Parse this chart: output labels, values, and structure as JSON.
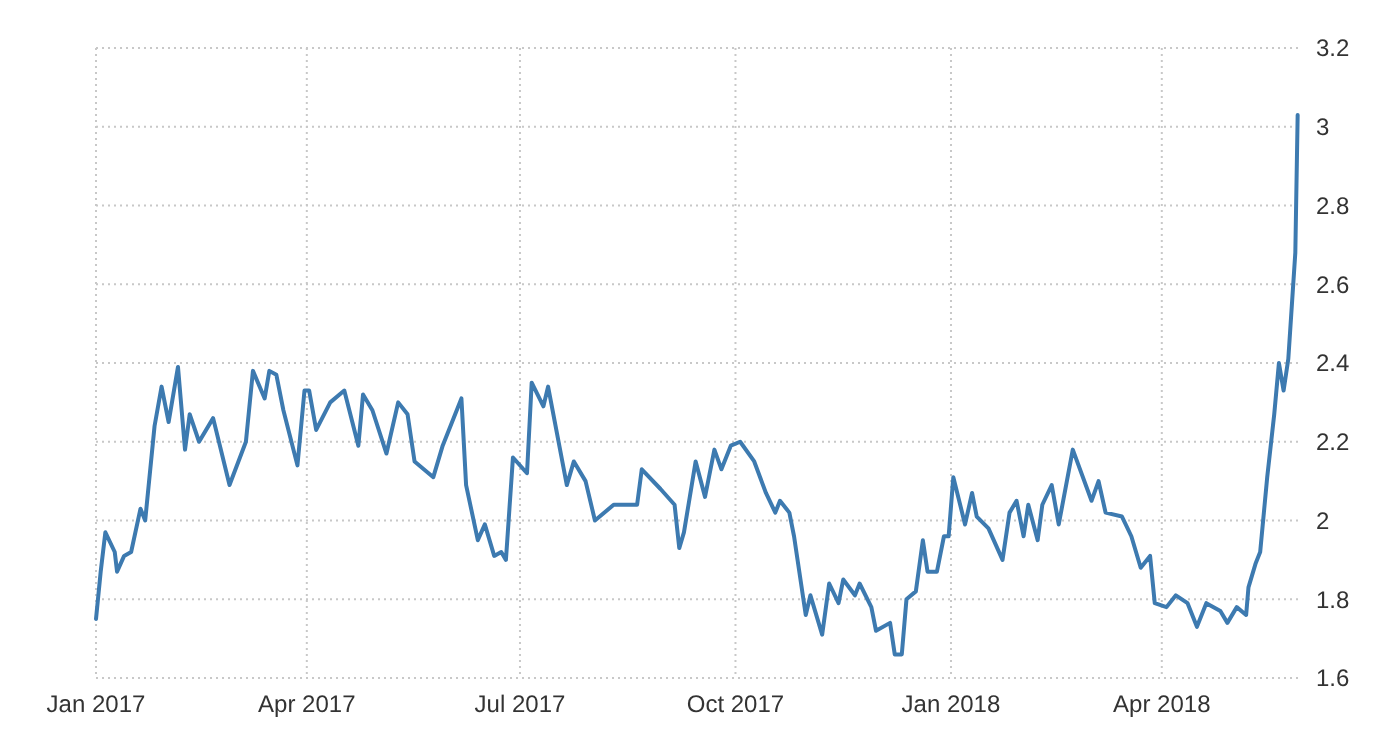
{
  "chart_data": {
    "type": "line",
    "x": [
      "2017-01-01",
      "2017-01-03",
      "2017-01-05",
      "2017-01-09",
      "2017-01-10",
      "2017-01-13",
      "2017-01-16",
      "2017-01-20",
      "2017-01-22",
      "2017-01-26",
      "2017-01-29",
      "2017-02-01",
      "2017-02-05",
      "2017-02-08",
      "2017-02-10",
      "2017-02-14",
      "2017-02-20",
      "2017-02-27",
      "2017-03-06",
      "2017-03-09",
      "2017-03-14",
      "2017-03-16",
      "2017-03-19",
      "2017-03-22",
      "2017-03-28",
      "2017-03-31",
      "2017-04-02",
      "2017-04-05",
      "2017-04-11",
      "2017-04-17",
      "2017-04-23",
      "2017-04-25",
      "2017-04-29",
      "2017-05-05",
      "2017-05-10",
      "2017-05-14",
      "2017-05-17",
      "2017-05-25",
      "2017-05-29",
      "2017-06-06",
      "2017-06-08",
      "2017-06-13",
      "2017-06-16",
      "2017-06-20",
      "2017-06-23",
      "2017-06-25",
      "2017-06-28",
      "2017-07-04",
      "2017-07-06",
      "2017-07-11",
      "2017-07-13",
      "2017-07-21",
      "2017-07-24",
      "2017-07-29",
      "2017-08-02",
      "2017-08-10",
      "2017-08-20",
      "2017-08-22",
      "2017-08-30",
      "2017-09-05",
      "2017-09-07",
      "2017-09-09",
      "2017-09-14",
      "2017-09-18",
      "2017-09-22",
      "2017-09-25",
      "2017-09-29",
      "2017-10-03",
      "2017-10-09",
      "2017-10-14",
      "2017-10-18",
      "2017-10-20",
      "2017-10-24",
      "2017-10-26",
      "2017-10-31",
      "2017-11-02",
      "2017-11-07",
      "2017-11-10",
      "2017-11-14",
      "2017-11-16",
      "2017-11-21",
      "2017-11-23",
      "2017-11-28",
      "2017-11-30",
      "2017-12-06",
      "2017-12-08",
      "2017-12-11",
      "2017-12-13",
      "2017-12-17",
      "2017-12-20",
      "2017-12-22",
      "2017-12-26",
      "2017-12-29",
      "2017-12-31",
      "2018-01-02",
      "2018-01-07",
      "2018-01-10",
      "2018-01-12",
      "2018-01-17",
      "2018-01-23",
      "2018-01-26",
      "2018-01-29",
      "2018-02-01",
      "2018-02-03",
      "2018-02-07",
      "2018-02-09",
      "2018-02-13",
      "2018-02-16",
      "2018-02-22",
      "2018-03-02",
      "2018-03-05",
      "2018-03-08",
      "2018-03-15",
      "2018-03-19",
      "2018-03-23",
      "2018-03-27",
      "2018-03-29",
      "2018-04-03",
      "2018-04-07",
      "2018-04-12",
      "2018-04-16",
      "2018-04-20",
      "2018-04-26",
      "2018-04-29",
      "2018-05-03",
      "2018-05-07",
      "2018-05-08",
      "2018-05-11",
      "2018-05-13",
      "2018-05-16",
      "2018-05-19",
      "2018-05-21",
      "2018-05-23",
      "2018-05-25",
      "2018-05-28",
      "2018-05-29"
    ],
    "series": [
      {
        "color": "#3d7ab0",
        "values": [
          1.75,
          1.87,
          1.97,
          1.92,
          1.87,
          1.91,
          1.92,
          2.03,
          2.0,
          2.24,
          2.34,
          2.25,
          2.39,
          2.18,
          2.27,
          2.2,
          2.26,
          2.09,
          2.2,
          2.38,
          2.31,
          2.38,
          2.37,
          2.28,
          2.14,
          2.33,
          2.33,
          2.23,
          2.3,
          2.33,
          2.19,
          2.32,
          2.28,
          2.17,
          2.3,
          2.27,
          2.15,
          2.11,
          2.19,
          2.31,
          2.09,
          1.95,
          1.99,
          1.91,
          1.92,
          1.9,
          2.16,
          2.12,
          2.35,
          2.29,
          2.34,
          2.09,
          2.15,
          2.1,
          2.0,
          2.04,
          2.04,
          2.13,
          2.08,
          2.04,
          1.93,
          1.97,
          2.15,
          2.06,
          2.18,
          2.13,
          2.19,
          2.2,
          2.15,
          2.07,
          2.02,
          2.05,
          2.02,
          1.96,
          1.76,
          1.81,
          1.71,
          1.84,
          1.79,
          1.85,
          1.81,
          1.84,
          1.78,
          1.72,
          1.74,
          1.66,
          1.66,
          1.8,
          1.82,
          1.95,
          1.87,
          1.87,
          1.96,
          1.96,
          2.11,
          1.99,
          2.07,
          2.01,
          1.98,
          1.9,
          2.02,
          2.05,
          1.96,
          2.04,
          1.95,
          2.04,
          2.09,
          1.99,
          2.18,
          2.05,
          2.1,
          2.02,
          2.01,
          1.96,
          1.88,
          1.91,
          1.79,
          1.78,
          1.81,
          1.79,
          1.73,
          1.79,
          1.77,
          1.74,
          1.78,
          1.76,
          1.83,
          1.89,
          1.92,
          2.11,
          2.27,
          2.4,
          2.33,
          2.41,
          2.68,
          3.03
        ]
      }
    ],
    "xlim": [
      "2017-01-01",
      "2018-05-30"
    ],
    "xticks": [
      {
        "value": "2017-01-01",
        "label": "Jan 2017"
      },
      {
        "value": "2017-04-01",
        "label": "Apr 2017"
      },
      {
        "value": "2017-07-01",
        "label": "Jul 2017"
      },
      {
        "value": "2017-10-01",
        "label": "Oct 2017"
      },
      {
        "value": "2018-01-01",
        "label": "Jan 2018"
      },
      {
        "value": "2018-04-01",
        "label": "Apr 2018"
      }
    ],
    "ylim": [
      1.6,
      3.2
    ],
    "yticks": [
      1.6,
      1.8,
      2,
      2.2,
      2.4,
      2.6,
      2.8,
      3,
      3.2
    ],
    "grid": true,
    "marker": "none",
    "line_style": "solid"
  }
}
